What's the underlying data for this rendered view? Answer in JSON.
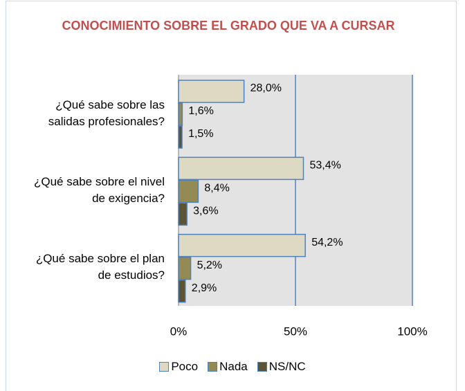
{
  "chart_data": {
    "type": "bar",
    "orientation": "horizontal",
    "title": "CONOCIMIENTO SOBRE EL GRADO QUE VA A CURSAR",
    "categories": [
      "¿Qué sabe sobre las salidas profesionales?",
      "¿Qué sabe sobre el nivel de exigencia?",
      "¿Qué sabe sobre el plan de estudios?"
    ],
    "series": [
      {
        "name": "Poco",
        "color": "#ddd9c3",
        "values": [
          28.0,
          53.4,
          54.2
        ],
        "value_labels": [
          "28,0%",
          "53,4%",
          "54,2%"
        ]
      },
      {
        "name": "Nada",
        "color": "#948a54",
        "values": [
          1.6,
          8.4,
          5.2
        ],
        "value_labels": [
          "1,6%",
          "8,4%",
          "5,2%"
        ]
      },
      {
        "name": "NS/NC",
        "color": "#5c5535",
        "values": [
          1.5,
          3.6,
          2.9
        ],
        "value_labels": [
          "1,5%",
          "3,6%",
          "2,9%"
        ]
      }
    ],
    "xlim": [
      0,
      100
    ],
    "xticks": [
      {
        "value": 0,
        "label": "0%"
      },
      {
        "value": 50,
        "label": "50%"
      },
      {
        "value": 100,
        "label": "100%"
      }
    ],
    "grid": true,
    "legend": "bottom"
  }
}
